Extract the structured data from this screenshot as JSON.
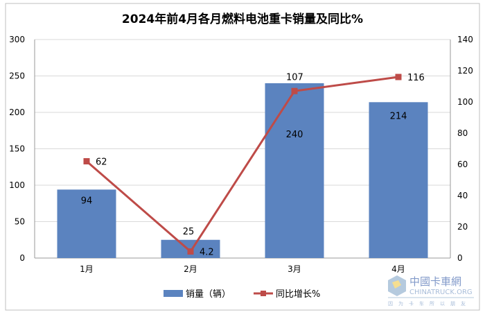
{
  "chart_data": {
    "type": "bar+line",
    "title": "2024年前4月各月燃料电池重卡销量及同比%",
    "categories": [
      "1月",
      "2月",
      "3月",
      "4月"
    ],
    "series": [
      {
        "name": "销量（辆）",
        "type": "bar",
        "axis": "left",
        "values": [
          94,
          25,
          240,
          214
        ],
        "color": "#5B83BF"
      },
      {
        "name": "同比增长%",
        "type": "line",
        "axis": "right",
        "values": [
          62,
          4.2,
          107,
          116
        ],
        "color": "#BE4B48"
      }
    ],
    "ylim_left": [
      0,
      300
    ],
    "ylim_right": [
      0,
      140
    ],
    "yticks_left": [
      "0",
      "50",
      "100",
      "150",
      "200",
      "250",
      "300"
    ],
    "yticks_right": [
      "0",
      "20",
      "40",
      "60",
      "80",
      "100",
      "120",
      "140"
    ],
    "grid": true,
    "legend_position": "bottom",
    "bar_labels": [
      "94",
      "25",
      "240",
      "214"
    ],
    "line_labels": [
      "62",
      "4.2",
      "107",
      "116"
    ]
  },
  "watermark": {
    "text": "中國卡車網",
    "sub": "CHINATRUCK.ORG",
    "tagline": "因为卡车所以朋友"
  }
}
